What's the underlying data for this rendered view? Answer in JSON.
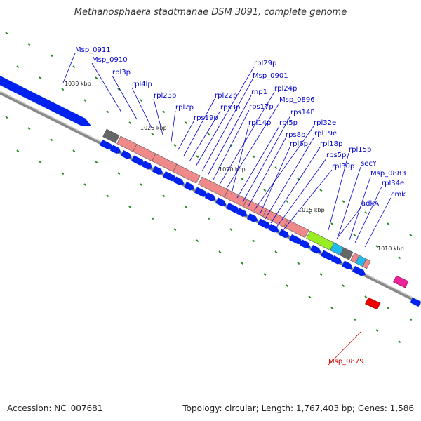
{
  "title": "Methanosphaera stadtmanae DSM 3091, complete genome",
  "footer": {
    "accession": "Accession: NC_007681",
    "summary": "Topology: circular; Length: 1,767,403 bp; Genes: 1,586"
  },
  "ticks": [
    "1030 kbp",
    "1025 kbp",
    "1020 kbp",
    "1015 kbp",
    "1010 kbp"
  ],
  "genes": [
    {
      "name": "Msp_0911",
      "color": "#0000cc"
    },
    {
      "name": "Msp_0910",
      "color": "#0000cc"
    },
    {
      "name": "rpl3p",
      "color": "#0000cc"
    },
    {
      "name": "rpl4lp",
      "color": "#0000cc"
    },
    {
      "name": "rpl23p",
      "color": "#0000cc"
    },
    {
      "name": "rpl2p",
      "color": "#0000cc"
    },
    {
      "name": "rps19p",
      "color": "#0000cc"
    },
    {
      "name": "rpl22p",
      "color": "#0000cc"
    },
    {
      "name": "rps3p",
      "color": "#0000cc"
    },
    {
      "name": "rpl29p",
      "color": "#0000cc"
    },
    {
      "name": "Msp_0901",
      "color": "#0000cc"
    },
    {
      "name": "rnp1",
      "color": "#0000cc"
    },
    {
      "name": "rps17p",
      "color": "#0000cc"
    },
    {
      "name": "rpl24p",
      "color": "#0000cc"
    },
    {
      "name": "Msp_0896",
      "color": "#0000cc"
    },
    {
      "name": "rpl14p",
      "color": "#0000cc"
    },
    {
      "name": "rpl5p",
      "color": "#0000cc"
    },
    {
      "name": "rps14P",
      "color": "#0000cc"
    },
    {
      "name": "rps8p",
      "color": "#0000cc"
    },
    {
      "name": "rpl32e",
      "color": "#0000cc"
    },
    {
      "name": "rpl6p",
      "color": "#0000cc"
    },
    {
      "name": "rpl19e",
      "color": "#0000cc"
    },
    {
      "name": "rpl18p",
      "color": "#0000cc"
    },
    {
      "name": "rps5p",
      "color": "#0000cc"
    },
    {
      "name": "rpl30p",
      "color": "#0000cc"
    },
    {
      "name": "rpl15p",
      "color": "#0000cc"
    },
    {
      "name": "secY",
      "color": "#0000cc"
    },
    {
      "name": "Msp_0883",
      "color": "#0000cc"
    },
    {
      "name": "rpl34e",
      "color": "#0000cc"
    },
    {
      "name": "cmk",
      "color": "#0000cc"
    },
    {
      "name": "adkA",
      "color": "#0000cc"
    },
    {
      "name": "Msp_0879",
      "color": "#cc0000"
    }
  ],
  "colors": {
    "gene_arrow": "#0022ee",
    "ribosomal_operon": "#f08a8a",
    "gray_block": "#666666",
    "green_block": "#99ee22",
    "cyan_block": "#22bbee",
    "pink_block": "#ee2299",
    "red_block": "#ee0000",
    "backbone": "#888888",
    "tick": "#228822"
  }
}
